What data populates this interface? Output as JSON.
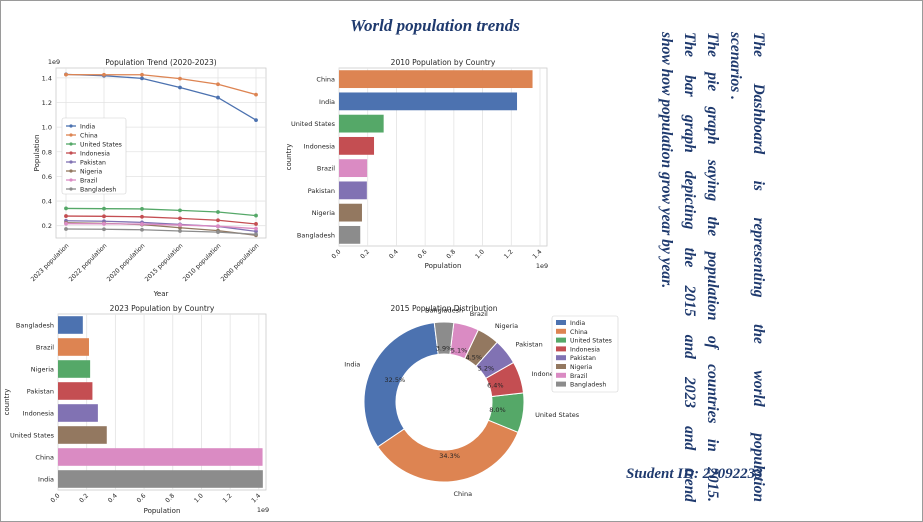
{
  "page": {
    "title": "World population trends",
    "description_lines": [
      "The  Dashboard  is  representing  the  world  population",
      "scenarios .",
      "The pie graph saying the population of countries in 2015.",
      "The  bar graph  depicting  the  2015  and  2023  and  trend",
      "show how population grow year by year."
    ],
    "student_id": "Student ID: 22092233"
  },
  "colors": {
    "India": "#4c72b0",
    "China": "#dd8452",
    "United States": "#55a868",
    "Indonesia": "#c44e52",
    "Pakistan": "#8172b3",
    "Nigeria": "#937860",
    "Brazil": "#da8bc3",
    "Bangladesh": "#8c8c8c"
  },
  "chart_data": [
    {
      "type": "line",
      "title": "Population Trend (2020-2023)",
      "xlabel": "Year",
      "ylabel": "Population",
      "y_offset_label": "1e9",
      "x": [
        "2023 population",
        "2022 population",
        "2020 population",
        "2015 population",
        "2010 population",
        "2000 population"
      ],
      "yticks": [
        0.2,
        0.4,
        0.6,
        0.8,
        1.0,
        1.2,
        1.4
      ],
      "ylim": [
        0.1,
        1.48
      ],
      "legend": "center-left",
      "series": [
        {
          "name": "India",
          "values": [
            1.428,
            1.417,
            1.396,
            1.322,
            1.24,
            1.057
          ]
        },
        {
          "name": "China",
          "values": [
            1.426,
            1.425,
            1.425,
            1.394,
            1.348,
            1.264
          ]
        },
        {
          "name": "United States",
          "values": [
            0.34,
            0.338,
            0.336,
            0.324,
            0.311,
            0.282
          ]
        },
        {
          "name": "Indonesia",
          "values": [
            0.278,
            0.276,
            0.272,
            0.259,
            0.244,
            0.214
          ]
        },
        {
          "name": "Pakistan",
          "values": [
            0.24,
            0.236,
            0.227,
            0.21,
            0.194,
            0.154
          ]
        },
        {
          "name": "Nigeria",
          "values": [
            0.224,
            0.219,
            0.209,
            0.183,
            0.16,
            0.122
          ]
        },
        {
          "name": "Brazil",
          "values": [
            0.216,
            0.215,
            0.213,
            0.205,
            0.196,
            0.176
          ]
        },
        {
          "name": "Bangladesh",
          "values": [
            0.173,
            0.171,
            0.167,
            0.157,
            0.148,
            0.13
          ]
        }
      ]
    },
    {
      "type": "bar",
      "orientation": "horizontal",
      "title": "2010 Population by Country",
      "xlabel": "Population",
      "ylabel": "country",
      "x_offset_label": "1e9",
      "xticks": [
        0.0,
        0.2,
        0.4,
        0.6,
        0.8,
        1.0,
        1.2,
        1.4
      ],
      "xlim": [
        0,
        1.4
      ],
      "categories": [
        "China",
        "India",
        "United States",
        "Indonesia",
        "Brazil",
        "Pakistan",
        "Nigeria",
        "Bangladesh"
      ],
      "values": [
        1.348,
        1.24,
        0.311,
        0.244,
        0.196,
        0.194,
        0.16,
        0.148
      ]
    },
    {
      "type": "bar",
      "orientation": "horizontal",
      "title": "2023 Population by Country",
      "xlabel": "Population",
      "ylabel": "country",
      "x_offset_label": "1e9",
      "xticks": [
        0.0,
        0.2,
        0.4,
        0.6,
        0.8,
        1.0,
        1.2,
        1.4
      ],
      "xlim": [
        0,
        1.45
      ],
      "categories": [
        "Bangladesh",
        "Brazil",
        "Nigeria",
        "Pakistan",
        "Indonesia",
        "United States",
        "China",
        "India"
      ],
      "values": [
        0.173,
        0.216,
        0.224,
        0.24,
        0.278,
        0.34,
        1.426,
        1.428
      ],
      "bar_colors": [
        "#4c72b0",
        "#dd8452",
        "#55a868",
        "#c44e52",
        "#8172b3",
        "#937860",
        "#da8bc3",
        "#8c8c8c"
      ]
    },
    {
      "type": "pie",
      "donut": true,
      "title": "2015 Population Distribution",
      "categories": [
        "India",
        "China",
        "United States",
        "Indonesia",
        "Pakistan",
        "Nigeria",
        "Brazil",
        "Bangladesh"
      ],
      "values": [
        32.5,
        34.3,
        8.0,
        6.4,
        5.2,
        4.5,
        5.1,
        3.9
      ],
      "labels_pct": [
        "32.5%",
        "34.3%",
        "8.0%",
        "6.4%",
        "5.2%",
        "4.5%",
        "5.1%",
        "3.9%"
      ],
      "legend": "right"
    }
  ]
}
